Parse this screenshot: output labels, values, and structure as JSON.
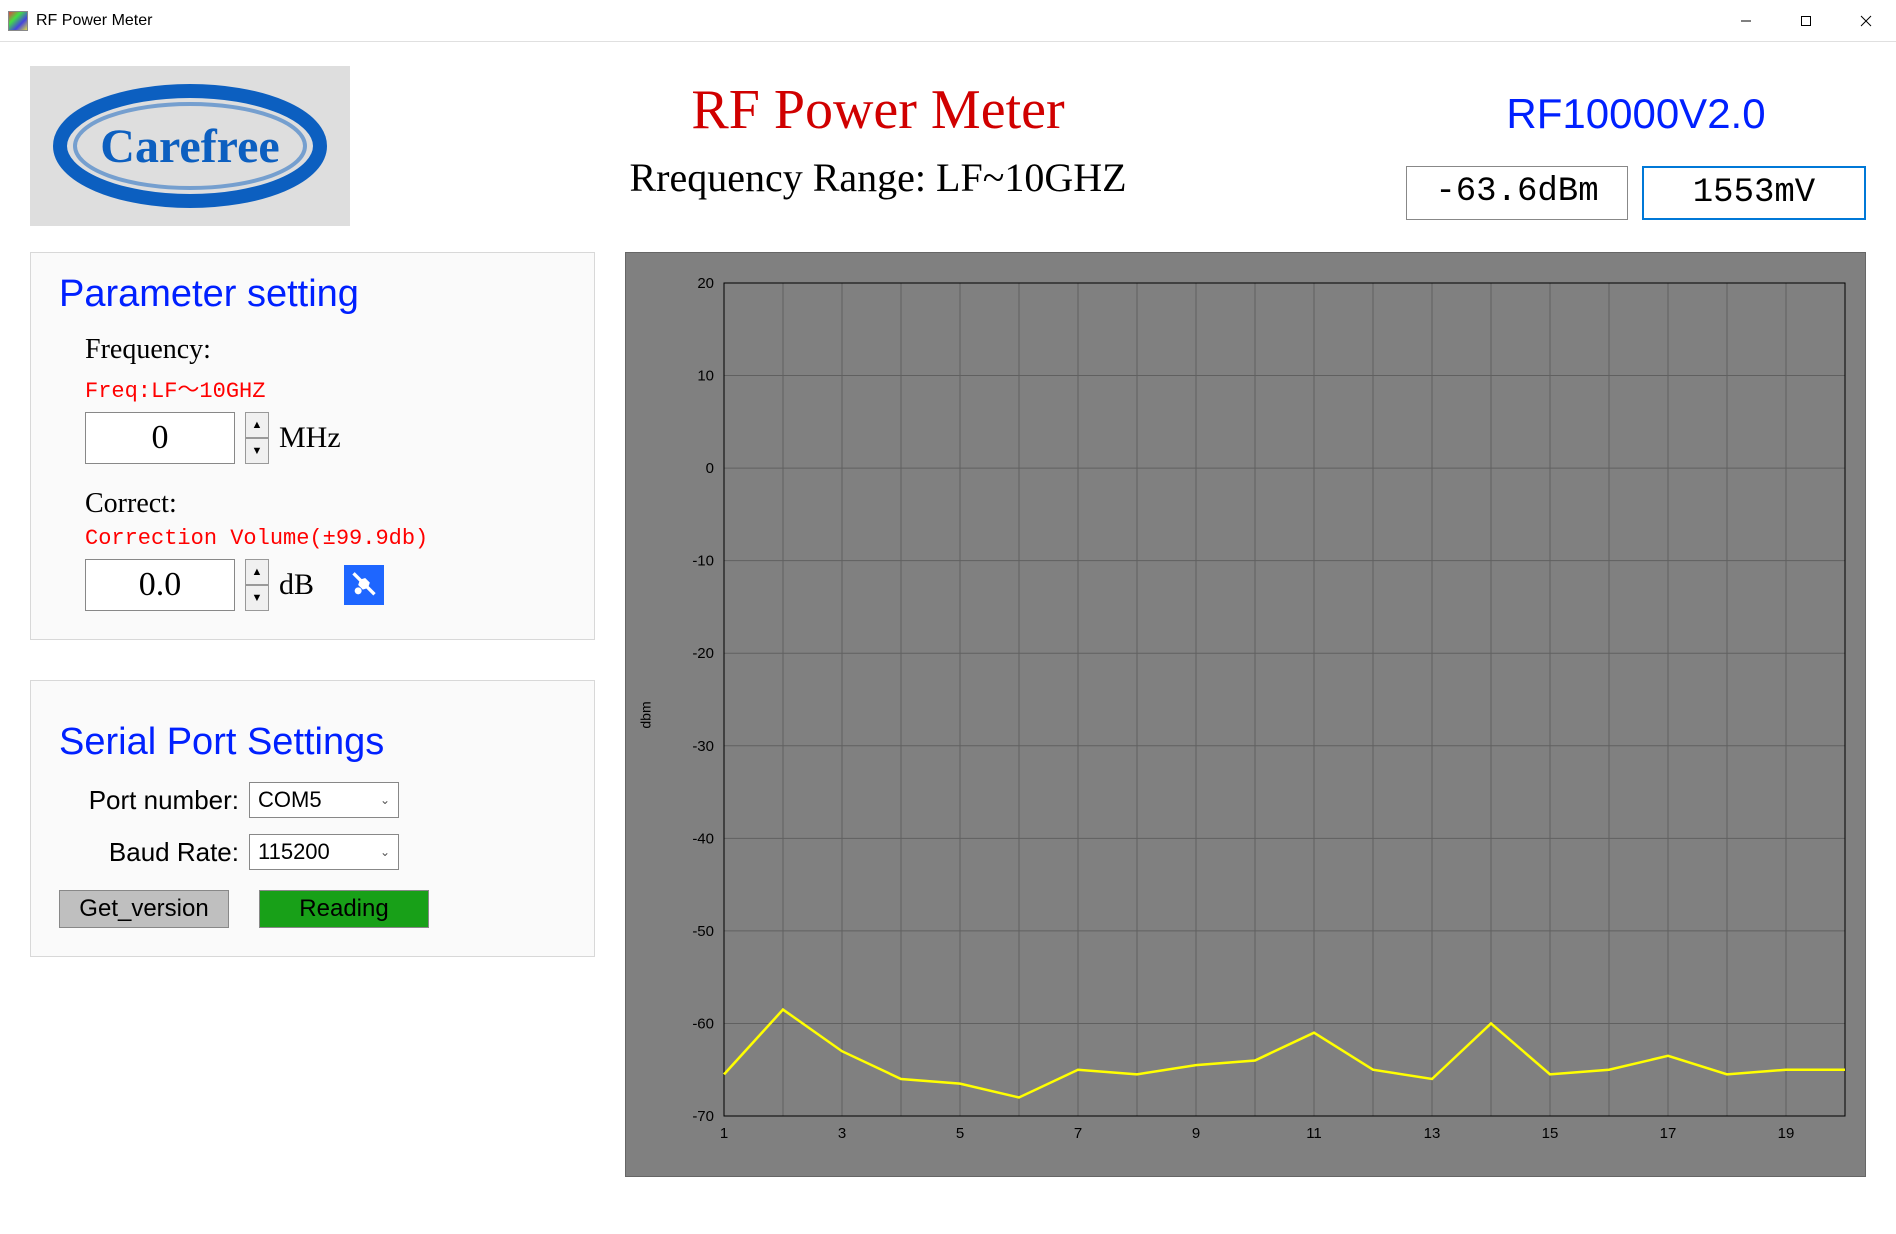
{
  "window": {
    "title": "RF Power Meter"
  },
  "header": {
    "logo_text": "Carefree",
    "logo_color": "#0c5fc0",
    "logo_bg": "#dedede",
    "title": "RF Power Meter",
    "title_color": "#d00000",
    "subtitle": "Rrequency Range: LF~10GHZ",
    "model": "RF10000V2.0",
    "model_color": "#0020ff",
    "readout_dbm": "-63.6dBm",
    "readout_mv": "1553mV"
  },
  "param": {
    "heading": "Parameter setting",
    "freq_label": "Frequency:",
    "freq_hint": "Freq:LF～10GHZ",
    "freq_value": "0",
    "freq_unit": "MHz",
    "corr_label": "Correct:",
    "corr_hint": "Correction Volume(±99.9db)",
    "corr_value": "0.0",
    "corr_unit": "dB"
  },
  "serial": {
    "heading": "Serial Port Settings",
    "port_label": "Port number:",
    "port_value": "COM5",
    "baud_label": "Baud Rate:",
    "baud_value": "115200",
    "btn_getver": "Get_version",
    "btn_reading": "Reading"
  },
  "chart": {
    "type": "line",
    "y_label": "dbm",
    "background_color": "#808080",
    "grid_color": "#606060",
    "axis_color": "#000000",
    "line_color": "#ffff00",
    "line_width": 2.5,
    "ylim": [
      -70,
      20
    ],
    "ytick_step": 10,
    "yticks": [
      20,
      10,
      0,
      -10,
      -20,
      -30,
      -40,
      -50,
      -60,
      -70
    ],
    "xlim": [
      1,
      20
    ],
    "xticks": [
      1,
      3,
      5,
      7,
      9,
      11,
      13,
      15,
      17,
      19
    ],
    "tick_fontsize": 15,
    "tick_color": "#000000",
    "x": [
      1,
      2,
      3,
      4,
      5,
      6,
      7,
      8,
      9,
      10,
      11,
      12,
      13,
      14,
      15,
      16,
      17,
      18,
      19,
      20
    ],
    "y": [
      -65.5,
      -58.5,
      -63,
      -66,
      -66.5,
      -68,
      -65,
      -65.5,
      -64.5,
      -64,
      -61,
      -65,
      -66,
      -60,
      -65.5,
      -65,
      -63.5,
      -65.5,
      -65,
      -65
    ]
  }
}
